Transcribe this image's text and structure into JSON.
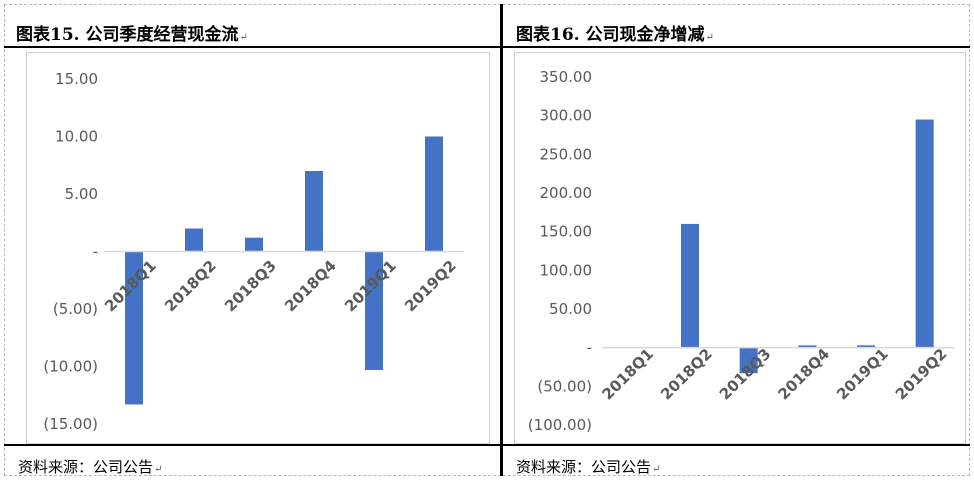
{
  "left": {
    "title": "图表15.  公司季度经营现金流",
    "source": "资料来源：公司公告",
    "chart_data": {
      "type": "bar",
      "categories": [
        "2018Q1",
        "2018Q2",
        "2018Q3",
        "2018Q4",
        "2019Q1",
        "2019Q2"
      ],
      "values": [
        -13.3,
        2.0,
        1.2,
        7.0,
        -10.3,
        10.0
      ],
      "ylim": [
        -15,
        15
      ],
      "yticks": [
        15,
        10,
        5,
        0,
        -5,
        -10,
        -15
      ],
      "ytick_labels": [
        "15.00",
        "10.00",
        "5.00",
        "-",
        "(5.00)",
        "(10.00)",
        "(15.00)"
      ],
      "bar_color": "#4472C4",
      "grid": false,
      "legend": "none"
    }
  },
  "right": {
    "title": "图表16.  公司现金净增减",
    "source": "资料来源：公司公告",
    "chart_data": {
      "type": "bar",
      "categories": [
        "2018Q1",
        "2018Q2",
        "2018Q3",
        "2018Q4",
        "2019Q1",
        "2019Q2"
      ],
      "values": [
        0,
        160,
        -33,
        3,
        3,
        295
      ],
      "ylim": [
        -100,
        350
      ],
      "yticks": [
        350,
        300,
        250,
        200,
        150,
        100,
        50,
        0,
        -50,
        -100
      ],
      "ytick_labels": [
        "350.00",
        "300.00",
        "250.00",
        "200.00",
        "150.00",
        "100.00",
        "50.00",
        "-",
        "(50.00)",
        "(100.00)"
      ],
      "bar_color": "#4472C4",
      "grid": false,
      "legend": "none"
    }
  }
}
